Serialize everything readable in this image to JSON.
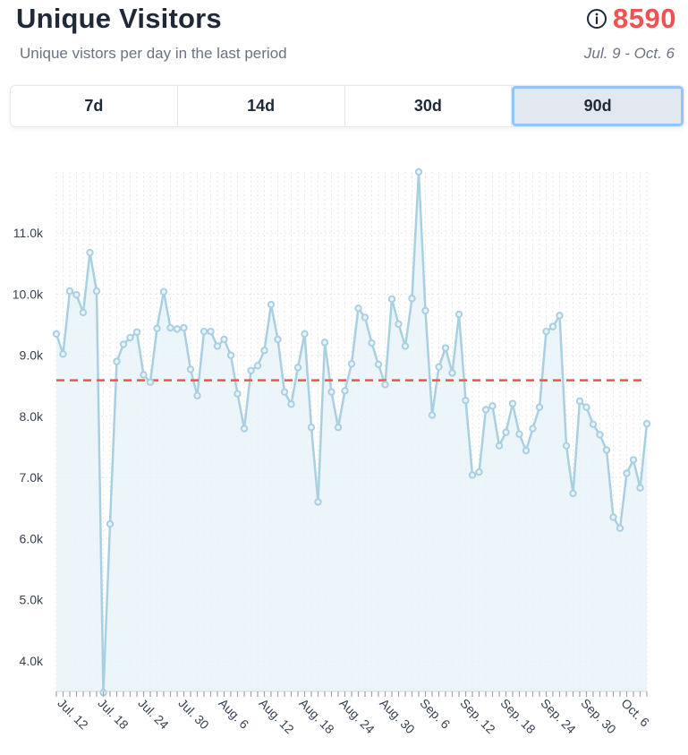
{
  "header": {
    "title": "Unique Visitors",
    "subtitle": "Unique vistors per day in the last period",
    "stat_value": "8590",
    "date_range": "Jul. 9 - Oct. 6",
    "info_icon": "info-circle-icon"
  },
  "range_selector": {
    "options": [
      "7d",
      "14d",
      "30d",
      "90d"
    ],
    "active": "90d"
  },
  "colors": {
    "line": "#a9d0e2",
    "area": "#e9f3f8",
    "average_line": "#f05252",
    "stat": "#f05252",
    "active_border": "#93c5fd"
  },
  "chart_data": {
    "type": "area",
    "ylim": [
      3500,
      12000
    ],
    "y_ticks": [
      "4.0k",
      "5.0k",
      "6.0k",
      "7.0k",
      "8.0k",
      "9.0k",
      "10.0k",
      "11.0k"
    ],
    "y_tick_values": [
      4000,
      5000,
      6000,
      7000,
      8000,
      9000,
      10000,
      11000
    ],
    "x_tick_labels": [
      "Jul. 12",
      "Jul. 18",
      "Jul. 24",
      "Jul. 30",
      "Aug. 6",
      "Aug. 12",
      "Aug. 18",
      "Aug. 24",
      "Aug. 30",
      "Sep. 6",
      "Sep. 12",
      "Sep. 18",
      "Sep. 24",
      "Sep. 30",
      "Oct. 6"
    ],
    "average": 8590,
    "grid": true,
    "series": [
      {
        "values": [
          9350,
          9020,
          10050,
          9990,
          9700,
          10680,
          10050,
          3480,
          6240,
          8900,
          9180,
          9290,
          9380,
          8680,
          8560,
          9440,
          10040,
          9450,
          9430,
          9450,
          8770,
          8340,
          9390,
          9390,
          9150,
          9260,
          9000,
          8370,
          7800,
          8750,
          8830,
          9080,
          9830,
          9260,
          8400,
          8200,
          8800,
          9350,
          7820,
          6600,
          9210,
          8400,
          7820,
          8420,
          8860,
          9770,
          9620,
          9200,
          8850,
          8520,
          9920,
          9510,
          9150,
          9930,
          12000,
          9730,
          8020,
          8810,
          9120,
          8710,
          9670,
          8260,
          7040,
          7090,
          8110,
          8170,
          7520,
          7740,
          8210,
          7710,
          7440,
          7800,
          8150,
          9390,
          9470,
          9650,
          7520,
          6740,
          8250,
          8150,
          7870,
          7700,
          7450,
          6350,
          6170,
          7070,
          7290,
          6830,
          7880
        ]
      }
    ]
  }
}
